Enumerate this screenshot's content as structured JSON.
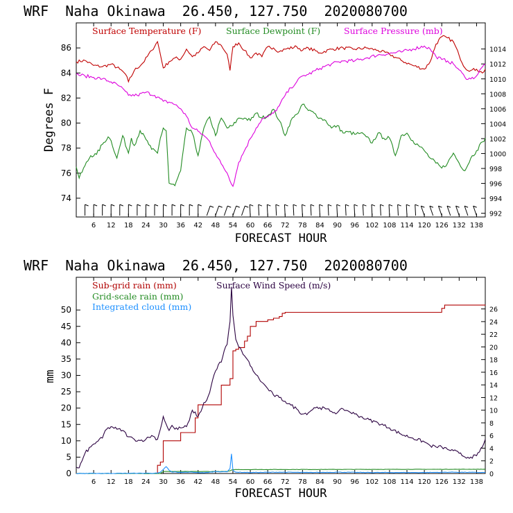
{
  "colors": {
    "temperature": "#c00000",
    "dewpoint": "#228b22",
    "pressure": "#dd00dd",
    "subgrid_rain": "#b00000",
    "gridscale_rain": "#228b22",
    "cloud": "#1e90ff",
    "wind": "#2a0040",
    "axis": "#000000"
  },
  "chart_data": [
    {
      "type": "line",
      "header": "WRF  Naha Okinawa  26.450, 127.750  2020080700",
      "xlabel": "FORECAST HOUR",
      "ylabel": "Degrees F",
      "xlim": [
        0,
        141
      ],
      "xticks": [
        6,
        12,
        18,
        24,
        30,
        36,
        42,
        48,
        54,
        60,
        66,
        72,
        78,
        84,
        90,
        96,
        102,
        108,
        114,
        120,
        126,
        132,
        138
      ],
      "ylim": [
        72.5,
        88
      ],
      "yticks": [
        74,
        76,
        78,
        80,
        82,
        84,
        86
      ],
      "y2lim": [
        991.5,
        1017.5
      ],
      "y2ticks": [
        992,
        994,
        996,
        998,
        1000,
        1002,
        1004,
        1006,
        1008,
        1010,
        1012,
        1014
      ],
      "legend": {
        "temperature": "Surface Temperature (F)",
        "dewpoint": "Surface Dewpoint (F)",
        "pressure": "Surface Pressure (mb)"
      },
      "series": [
        {
          "name": "Surface Temperature (F)",
          "axis": "left",
          "x": [
            0,
            3,
            6,
            9,
            12,
            15,
            17,
            18,
            20,
            23,
            26,
            28,
            29,
            30,
            32,
            34,
            36,
            38,
            40,
            42,
            44,
            46,
            48,
            50,
            52,
            53,
            54,
            56,
            58,
            60,
            62,
            64,
            66,
            68,
            70,
            72,
            76,
            78,
            80,
            84,
            88,
            92,
            96,
            100,
            104,
            108,
            112,
            116,
            120,
            122,
            124,
            126,
            128,
            130,
            132,
            134,
            136,
            138,
            140,
            141
          ],
          "y": [
            84.9,
            85,
            84.6,
            84.5,
            84.7,
            84.3,
            83.9,
            83.3,
            84.2,
            84.8,
            85.8,
            86.5,
            85.5,
            84.4,
            84.9,
            85.2,
            85.1,
            85.9,
            85.3,
            85.6,
            86.1,
            85.8,
            86.5,
            86.2,
            85.5,
            84.2,
            86.1,
            86.4,
            85.8,
            85.2,
            85.6,
            85.3,
            86.1,
            86.0,
            85.7,
            85.9,
            86.1,
            85.8,
            86.0,
            85.6,
            85.9,
            86.0,
            85.9,
            86.0,
            85.8,
            85.5,
            85.0,
            84.6,
            84.3,
            84.9,
            86.3,
            86.9,
            86.8,
            86.5,
            85.4,
            84.4,
            84.2,
            84.3,
            84.0,
            84.3
          ]
        },
        {
          "name": "Surface Dewpoint (F)",
          "axis": "left",
          "x": [
            0,
            1,
            3,
            5,
            7,
            9,
            11,
            12,
            14,
            16,
            18,
            19,
            20,
            22,
            24,
            26,
            28,
            29,
            30,
            31,
            32,
            34,
            36,
            38,
            40,
            42,
            44,
            46,
            48,
            50,
            52,
            54,
            56,
            58,
            60,
            62,
            64,
            66,
            68,
            70,
            72,
            74,
            76,
            78,
            80,
            82,
            84,
            86,
            88,
            90,
            92,
            94,
            96,
            98,
            100,
            102,
            104,
            106,
            108,
            110,
            112,
            114,
            116,
            118,
            120,
            122,
            124,
            126,
            128,
            130,
            132,
            134,
            136,
            138,
            140,
            141
          ],
          "y": [
            76.5,
            75.6,
            76.6,
            77.4,
            77.5,
            78.3,
            78.9,
            78.6,
            77.2,
            79.0,
            77.6,
            78.8,
            78.2,
            79.4,
            78.7,
            77.9,
            77.6,
            78.8,
            79.6,
            79.4,
            75.2,
            75.0,
            76.2,
            79.6,
            79.2,
            77.4,
            79.6,
            80.5,
            79.0,
            80.4,
            79.6,
            79.8,
            80.4,
            80.4,
            80.2,
            80.8,
            80.4,
            80.6,
            81.1,
            80.2,
            79.0,
            80.2,
            80.7,
            81.5,
            81.0,
            80.8,
            80.4,
            80.2,
            79.6,
            79.8,
            79.2,
            79.3,
            79.1,
            79.2,
            78.9,
            78.4,
            79.2,
            78.8,
            78.8,
            77.4,
            79.0,
            79.2,
            78.6,
            78.2,
            77.8,
            77.2,
            76.8,
            76.4,
            76.8,
            77.6,
            76.8,
            76.2,
            77.2,
            77.8,
            78.5,
            78.8
          ]
        },
        {
          "name": "Surface Pressure (mb)",
          "axis": "right",
          "x": [
            0,
            3,
            6,
            9,
            12,
            15,
            18,
            21,
            24,
            27,
            30,
            33,
            36,
            38,
            40,
            42,
            44,
            46,
            48,
            50,
            52,
            54,
            56,
            58,
            60,
            62,
            64,
            66,
            68,
            70,
            72,
            74,
            76,
            78,
            80,
            84,
            88,
            92,
            96,
            100,
            104,
            108,
            112,
            116,
            120,
            122,
            124,
            126,
            128,
            130,
            132,
            134,
            136,
            138,
            140,
            141
          ],
          "y": [
            1010.6,
            1010.4,
            1010.2,
            1010.0,
            1009.6,
            1009.0,
            1007.8,
            1007.8,
            1008.2,
            1007.8,
            1007.0,
            1006.8,
            1006.0,
            1005.0,
            1003.4,
            1003.0,
            1002.4,
            1001.6,
            1000.0,
            998.6,
            997.4,
            995.6,
            998.8,
            1000.4,
            1002.0,
            1003.4,
            1004.6,
            1004.9,
            1005.4,
            1006.4,
            1007.8,
            1008.8,
            1009.6,
            1010.4,
            1010.6,
            1011.4,
            1012.0,
            1012.4,
            1012.4,
            1012.8,
            1013.2,
            1013.4,
            1013.6,
            1014.0,
            1014.4,
            1014.0,
            1013.0,
            1012.6,
            1012.4,
            1012.0,
            1011.2,
            1010.2,
            1010.0,
            1010.4,
            1011.6,
            1012.0
          ]
        }
      ]
    },
    {
      "type": "line",
      "header": "WRF  Naha Okinawa  26.450, 127.750  2020080700",
      "xlabel": "FORECAST HOUR",
      "ylabel": "mm",
      "xlim": [
        0,
        141
      ],
      "xticks": [
        6,
        12,
        18,
        24,
        30,
        36,
        42,
        48,
        54,
        60,
        66,
        72,
        78,
        84,
        90,
        96,
        102,
        108,
        114,
        120,
        126,
        132,
        138
      ],
      "ylim": [
        0,
        60
      ],
      "yticks": [
        0,
        5,
        10,
        15,
        20,
        25,
        30,
        35,
        40,
        45,
        50
      ],
      "y2lim": [
        0,
        31
      ],
      "y2ticks": [
        0,
        2,
        4,
        6,
        8,
        10,
        12,
        14,
        16,
        18,
        20,
        22,
        24,
        26
      ],
      "legend": {
        "subgrid": "Sub-grid rain (mm)",
        "gridscale": "Grid-scale rain (mm)",
        "cloud": "Integrated cloud (mm)",
        "wind": "Surface Wind Speed (m/s)"
      },
      "series": [
        {
          "name": "Sub-grid rain (mm)",
          "axis": "left",
          "step": true,
          "x": [
            0,
            19,
            28,
            29,
            30,
            36,
            41,
            42,
            49,
            50,
            53,
            54,
            55,
            56,
            58,
            59,
            60,
            62,
            65,
            66,
            68,
            69,
            70,
            71,
            72,
            125,
            126,
            127,
            141
          ],
          "y": [
            0,
            0,
            2.5,
            3.5,
            10,
            12.5,
            17,
            21,
            21,
            27,
            29,
            37.5,
            38,
            38.5,
            40.5,
            42,
            45,
            46.5,
            46.5,
            47,
            47.5,
            47.5,
            48,
            49,
            49.3,
            49.3,
            50.5,
            51.5,
            51.6
          ]
        },
        {
          "name": "Grid-scale rain (mm)",
          "axis": "left",
          "x": [
            0,
            29,
            30,
            52,
            53,
            54,
            141
          ],
          "y": [
            0,
            0,
            0.6,
            0.6,
            0.8,
            1.2,
            1.3
          ]
        },
        {
          "name": "Integrated cloud (mm)",
          "axis": "left",
          "x": [
            0,
            28,
            29,
            30,
            31,
            32,
            33,
            34,
            35,
            40,
            44,
            48,
            52,
            53,
            53.5,
            54,
            55,
            60,
            70,
            80,
            90,
            100,
            110,
            120,
            130,
            141
          ],
          "y": [
            0,
            0.1,
            0.4,
            1.2,
            2.1,
            1.0,
            0.4,
            0.5,
            0.3,
            0.4,
            0.2,
            0.6,
            0.5,
            1.5,
            6.0,
            1.0,
            0.4,
            0.3,
            0.4,
            0.3,
            0.4,
            0.3,
            0.3,
            0.3,
            0.4,
            0.3
          ]
        },
        {
          "name": "Surface Wind Speed (m/s)",
          "axis": "right",
          "x": [
            0,
            1,
            2,
            3,
            5,
            7,
            9,
            10,
            12,
            14,
            16,
            18,
            20,
            22,
            24,
            26,
            28,
            29,
            30,
            31,
            32,
            33,
            34,
            36,
            38,
            39,
            40,
            42,
            43,
            44,
            45,
            46,
            47,
            48,
            49,
            50,
            51,
            52,
            53,
            53.5,
            54,
            55,
            56,
            57,
            58,
            59,
            60,
            62,
            64,
            66,
            68,
            70,
            72,
            74,
            76,
            78,
            80,
            82,
            84,
            86,
            88,
            90,
            92,
            94,
            96,
            98,
            100,
            104,
            108,
            112,
            116,
            120,
            122,
            124,
            126,
            128,
            130,
            132,
            134,
            136,
            138,
            139,
            140,
            141
          ],
          "y": [
            1.0,
            0.9,
            2.0,
            3.2,
            4.2,
            5.0,
            5.6,
            6.8,
            7.4,
            7.0,
            6.8,
            5.8,
            5.4,
            5.2,
            5.4,
            6.0,
            5.4,
            7.0,
            9.0,
            7.8,
            6.8,
            7.6,
            7.0,
            7.2,
            7.4,
            8.4,
            10.0,
            9.0,
            9.8,
            11.2,
            11.6,
            12.8,
            14.8,
            16.2,
            17.2,
            17.6,
            19.4,
            20.4,
            24.0,
            29.5,
            25.0,
            21.2,
            20.0,
            19.4,
            18.6,
            18.0,
            17.0,
            15.6,
            14.4,
            13.4,
            12.4,
            12.0,
            11.4,
            10.8,
            10.2,
            9.4,
            9.6,
            10.4,
            10.4,
            10.2,
            9.8,
            9.6,
            10.2,
            9.8,
            9.4,
            9.0,
            8.6,
            8.0,
            7.2,
            6.2,
            5.6,
            5.0,
            4.4,
            4.2,
            4.2,
            3.8,
            3.6,
            3.2,
            2.6,
            2.6,
            2.8,
            3.4,
            4.2,
            5.4
          ]
        }
      ]
    }
  ]
}
